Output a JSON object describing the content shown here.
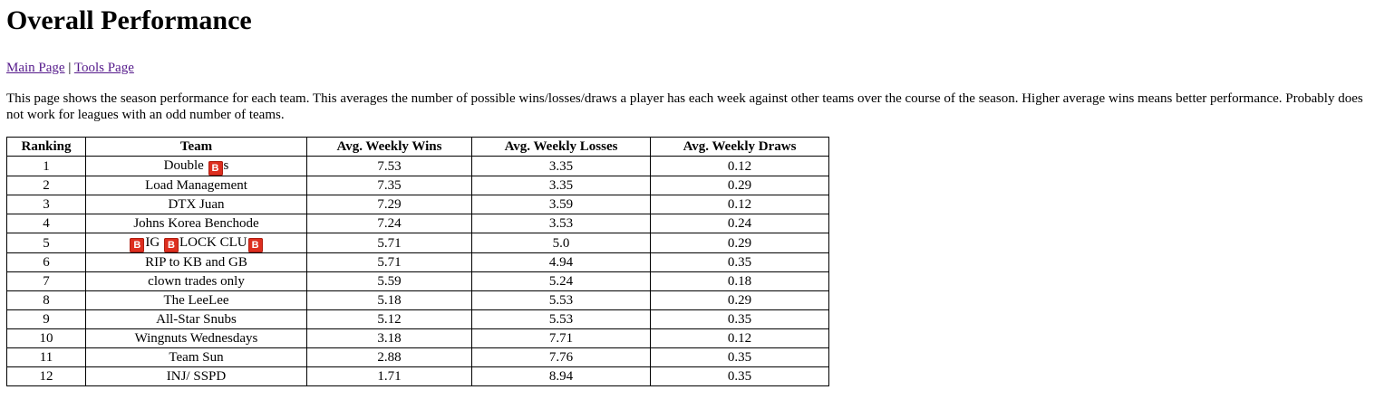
{
  "page": {
    "title": "Overall Performance",
    "nav": {
      "main_link": "Main Page",
      "separator": "|",
      "tools_link": "Tools Page"
    },
    "description": "This page shows the season performance for each team. This averages the number of possible wins/losses/draws a player has each week against other teams over the course of the season. Higher average wins means better performance. Probably does not work for leagues with an odd number of teams."
  },
  "table": {
    "headers": [
      "Ranking",
      "Team",
      "Avg. Weekly Wins",
      "Avg. Weekly Losses",
      "Avg. Weekly Draws"
    ],
    "emoji_glyph": "B",
    "emoji_icon": "b-button-emoji-icon",
    "emoji_color": "#dd2e1f",
    "rows": [
      {
        "rank": "1",
        "team": [
          {
            "t": "Double "
          },
          {
            "e": true
          },
          {
            "t": "s"
          }
        ],
        "wins": "7.53",
        "losses": "3.35",
        "draws": "0.12"
      },
      {
        "rank": "2",
        "team": [
          {
            "t": "Load Management"
          }
        ],
        "wins": "7.35",
        "losses": "3.35",
        "draws": "0.29"
      },
      {
        "rank": "3",
        "team": [
          {
            "t": "DTX Juan"
          }
        ],
        "wins": "7.29",
        "losses": "3.59",
        "draws": "0.12"
      },
      {
        "rank": "4",
        "team": [
          {
            "t": "Johns Korea Benchode"
          }
        ],
        "wins": "7.24",
        "losses": "3.53",
        "draws": "0.24"
      },
      {
        "rank": "5",
        "team": [
          {
            "e": true
          },
          {
            "t": "IG "
          },
          {
            "e": true
          },
          {
            "t": "LOCK CLU"
          },
          {
            "e": true
          }
        ],
        "wins": "5.71",
        "losses": "5.0",
        "draws": "0.29"
      },
      {
        "rank": "6",
        "team": [
          {
            "t": "RIP to KB and GB"
          }
        ],
        "wins": "5.71",
        "losses": "4.94",
        "draws": "0.35"
      },
      {
        "rank": "7",
        "team": [
          {
            "t": "clown trades only"
          }
        ],
        "wins": "5.59",
        "losses": "5.24",
        "draws": "0.18"
      },
      {
        "rank": "8",
        "team": [
          {
            "t": "The LeeLee"
          }
        ],
        "wins": "5.18",
        "losses": "5.53",
        "draws": "0.29"
      },
      {
        "rank": "9",
        "team": [
          {
            "t": "All-Star Snubs"
          }
        ],
        "wins": "5.12",
        "losses": "5.53",
        "draws": "0.35"
      },
      {
        "rank": "10",
        "team": [
          {
            "t": "Wingnuts Wednesdays"
          }
        ],
        "wins": "3.18",
        "losses": "7.71",
        "draws": "0.12"
      },
      {
        "rank": "11",
        "team": [
          {
            "t": "Team Sun"
          }
        ],
        "wins": "2.88",
        "losses": "7.76",
        "draws": "0.35"
      },
      {
        "rank": "12",
        "team": [
          {
            "t": "INJ/ SSPD"
          }
        ],
        "wins": "1.71",
        "losses": "8.94",
        "draws": "0.35"
      }
    ]
  }
}
